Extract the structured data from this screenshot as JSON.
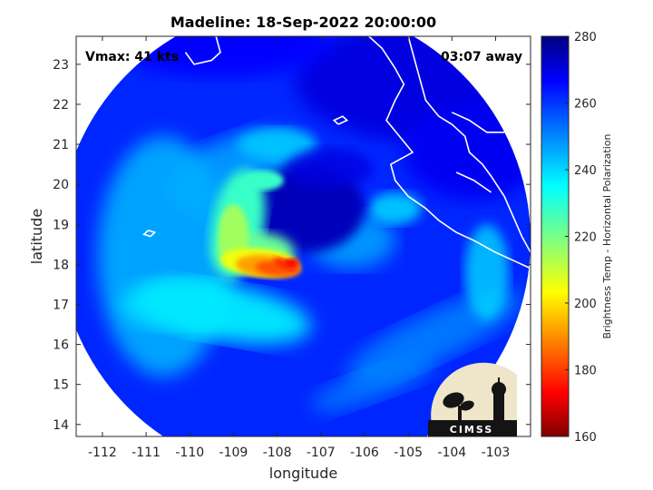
{
  "chart_data": {
    "type": "heatmap",
    "title": "Madeline: 18-Sep-2022 20:00:00",
    "xlabel": "longitude",
    "ylabel": "latitude",
    "xlim": [
      -112.6,
      -102.2
    ],
    "ylim": [
      13.7,
      23.7
    ],
    "x_ticks": [
      -112,
      -111,
      -110,
      -109,
      -108,
      -107,
      -106,
      -105,
      -104,
      -103
    ],
    "y_ticks": [
      14,
      15,
      16,
      17,
      18,
      19,
      20,
      21,
      22,
      23
    ],
    "annotations": {
      "vmax": "Vmax: 41 kts",
      "time_away": "03:07 away"
    },
    "colorbar": {
      "label": "Brightness Temp - Horizontal Polarization",
      "range": [
        160,
        280
      ],
      "ticks": [
        160,
        180,
        200,
        220,
        240,
        260,
        280
      ],
      "colormap": "jet"
    },
    "swath": {
      "shape": "circle",
      "center_lon": -107.6,
      "center_lat": 18.6,
      "radius_deg": 5.4
    },
    "storm_center": {
      "lon": -107.3,
      "lat": 19.3
    },
    "features": [
      {
        "name": "deep convection",
        "lon": -108.0,
        "lat": 17.9,
        "min_temp": 180
      },
      {
        "name": "spiral rainband",
        "lon": -109.0,
        "lat": 19.0,
        "temp": 225
      }
    ],
    "logo": "CIMSS"
  }
}
